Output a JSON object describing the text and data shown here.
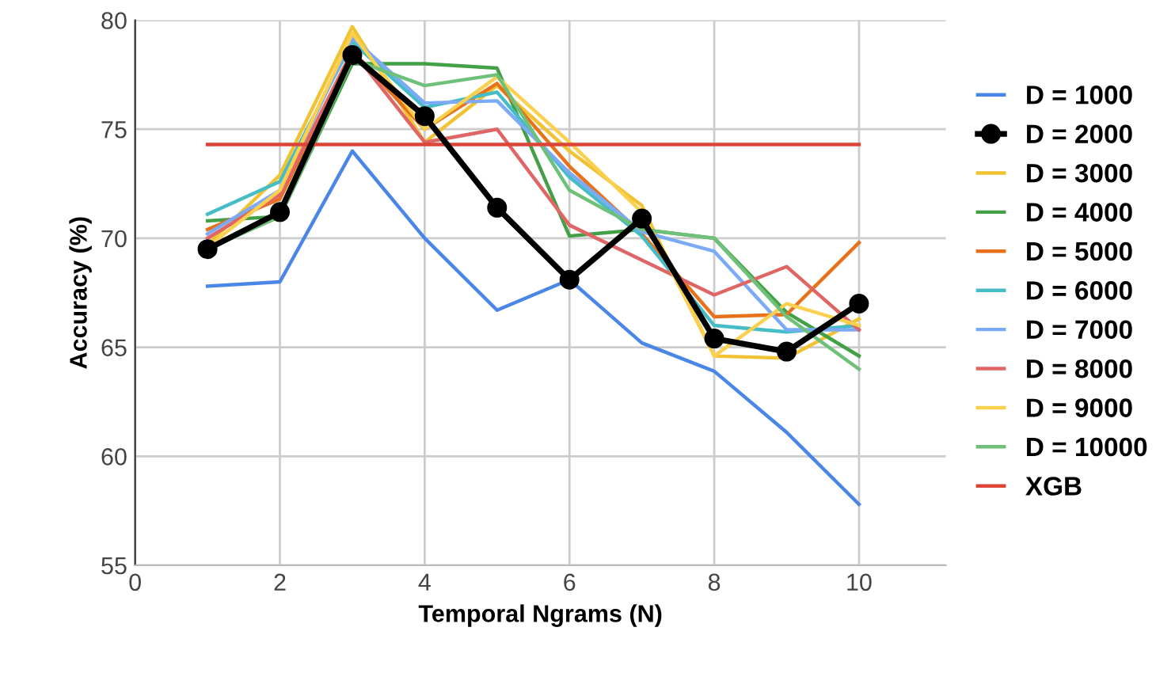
{
  "chart_data": {
    "type": "line",
    "xlabel": "Temporal Ngrams (N)",
    "ylabel": "Accuracy (%)",
    "x": [
      1,
      2,
      3,
      4,
      5,
      6,
      7,
      8,
      9,
      10
    ],
    "xlim": [
      0,
      11.2
    ],
    "xticks": [
      0,
      2,
      4,
      6,
      8,
      10
    ],
    "ylim": [
      55,
      80
    ],
    "yticks": [
      55,
      60,
      65,
      70,
      75,
      80
    ],
    "grid": true,
    "legend": "right",
    "marker": "none",
    "line_style": "solid",
    "series": [
      {
        "name": "D = 1000",
        "color": "#4a86e8",
        "values": [
          67.8,
          68.0,
          74.0,
          70.0,
          66.7,
          68.1,
          65.2,
          63.9,
          61.1,
          57.8
        ]
      },
      {
        "name": "D = 2000",
        "color": "#000000",
        "marker": "circle",
        "values": [
          69.5,
          71.2,
          78.4,
          75.6,
          71.4,
          68.1,
          70.9,
          65.4,
          64.8,
          67.0
        ]
      },
      {
        "name": "D = 3000",
        "color": "#f1c232",
        "values": [
          69.7,
          72.9,
          79.7,
          74.4,
          77.0,
          74.0,
          71.5,
          64.6,
          64.5,
          66.3
        ]
      },
      {
        "name": "D = 4000",
        "color": "#43a047",
        "values": [
          70.8,
          71.0,
          78.0,
          78.0,
          77.8,
          70.1,
          70.4,
          70.0,
          66.6,
          64.6
        ]
      },
      {
        "name": "D = 5000",
        "color": "#e8711c",
        "values": [
          70.4,
          71.8,
          78.6,
          75.0,
          77.1,
          73.3,
          70.2,
          66.4,
          66.5,
          69.8
        ]
      },
      {
        "name": "D = 6000",
        "color": "#46bdc6",
        "values": [
          71.1,
          72.6,
          79.0,
          76.0,
          76.7,
          72.8,
          70.1,
          66.0,
          65.7,
          66.0
        ]
      },
      {
        "name": "D = 7000",
        "color": "#7baaf7",
        "values": [
          70.2,
          72.2,
          79.2,
          76.2,
          76.3,
          73.0,
          70.3,
          69.4,
          65.8,
          65.8
        ]
      },
      {
        "name": "D = 8000",
        "color": "#e06666",
        "values": [
          70.0,
          72.0,
          78.6,
          74.4,
          75.0,
          70.6,
          69.0,
          67.4,
          68.7,
          65.8
        ]
      },
      {
        "name": "D = 9000",
        "color": "#fcd04f",
        "values": [
          69.6,
          72.2,
          79.4,
          75.0,
          77.4,
          74.4,
          71.2,
          64.6,
          67.0,
          66.0
        ]
      },
      {
        "name": "D = 10000",
        "color": "#6fc17a",
        "values": [
          69.5,
          71.0,
          78.2,
          77.0,
          77.5,
          72.2,
          70.4,
          70.0,
          66.4,
          64.0
        ]
      },
      {
        "name": "XGB",
        "color": "#db4437",
        "values": [
          74.3,
          74.3,
          74.3,
          74.3,
          74.3,
          74.3,
          74.3,
          74.3,
          74.3,
          74.3
        ]
      }
    ]
  }
}
